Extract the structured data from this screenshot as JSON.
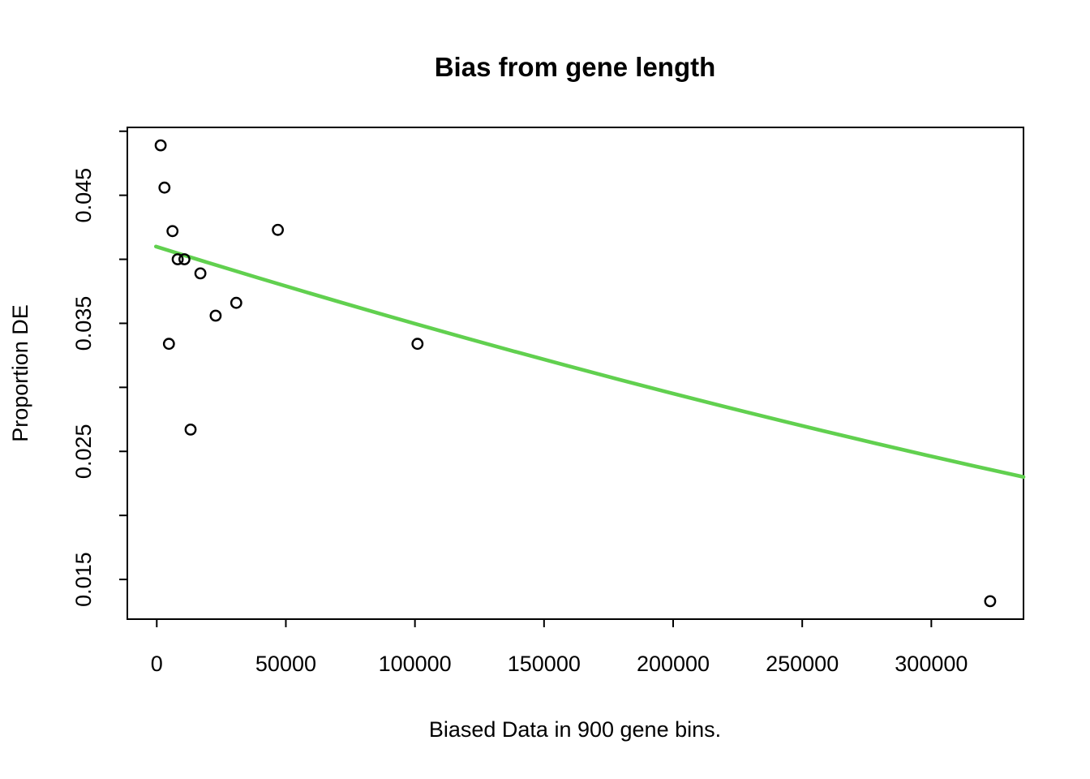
{
  "figure": {
    "background_color": "#FFFFFF",
    "foreground_color": "#000000"
  },
  "chart_data": {
    "type": "scatter",
    "title": "Bias from gene length",
    "xlabel": "Biased Data in 900 gene bins.",
    "ylabel": "Proportion DE",
    "grid": false,
    "legend": null,
    "xlim": [
      -11400,
      335700
    ],
    "ylim": [
      0.0119,
      0.0503
    ],
    "x_axis": {
      "ticks": [
        {
          "v": 0,
          "label": "0"
        },
        {
          "v": 50000,
          "label": "50000"
        },
        {
          "v": 100000,
          "label": "100000"
        },
        {
          "v": 150000,
          "label": "150000"
        },
        {
          "v": 200000,
          "label": "200000"
        },
        {
          "v": 250000,
          "label": "250000"
        },
        {
          "v": 300000,
          "label": "300000"
        }
      ]
    },
    "y_axis": {
      "ticks": [
        {
          "v": 0.015,
          "label": "0.015"
        },
        {
          "v": 0.02,
          "label": ""
        },
        {
          "v": 0.025,
          "label": "0.025"
        },
        {
          "v": 0.03,
          "label": ""
        },
        {
          "v": 0.035,
          "label": "0.035"
        },
        {
          "v": 0.04,
          "label": ""
        },
        {
          "v": 0.045,
          "label": "0.045"
        },
        {
          "v": 0.05,
          "label": ""
        }
      ]
    },
    "points": [
      {
        "x": 1500,
        "y": 0.0489
      },
      {
        "x": 3000,
        "y": 0.0456
      },
      {
        "x": 4700,
        "y": 0.0334
      },
      {
        "x": 6100,
        "y": 0.0422
      },
      {
        "x": 8100,
        "y": 0.04
      },
      {
        "x": 10700,
        "y": 0.04
      },
      {
        "x": 13100,
        "y": 0.0267
      },
      {
        "x": 16900,
        "y": 0.0389
      },
      {
        "x": 22800,
        "y": 0.0356
      },
      {
        "x": 30800,
        "y": 0.0366
      },
      {
        "x": 46900,
        "y": 0.0423
      },
      {
        "x": 101000,
        "y": 0.0334
      },
      {
        "x": 322800,
        "y": 0.0133
      }
    ],
    "point_style": {
      "shape": "open-circle",
      "color": "#000000"
    },
    "fit_line": {
      "color": "#61D04F",
      "points": [
        {
          "x": -300,
          "y": 0.041
        },
        {
          "x": 168000,
          "y": 0.0312
        },
        {
          "x": 335700,
          "y": 0.023
        }
      ]
    }
  }
}
